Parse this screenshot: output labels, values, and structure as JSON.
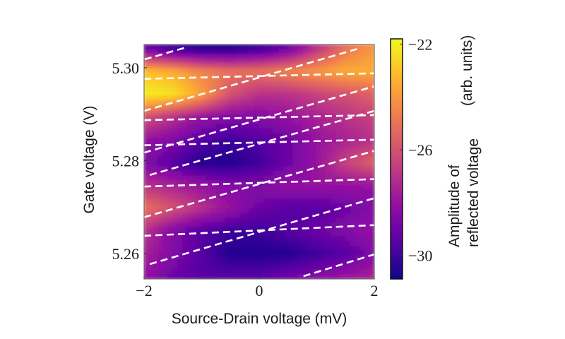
{
  "chart_data": {
    "type": "heatmap",
    "title": "",
    "xlabel": "Source-Drain voltage (mV)",
    "ylabel": "Gate voltage (V)",
    "xlim": [
      -2,
      2
    ],
    "ylim": [
      5.2545,
      5.305
    ],
    "xticks": [
      -2,
      0,
      2
    ],
    "xtick_labels": [
      "−2",
      "0",
      "2"
    ],
    "yticks": [
      5.26,
      5.28,
      5.3
    ],
    "ytick_labels": [
      "5.26",
      "5.28",
      "5.30"
    ],
    "grid": false,
    "colormap": "plasma",
    "colormap_stops": [
      "#0d0887",
      "#5302a3",
      "#8b0aa5",
      "#b83289",
      "#db5c68",
      "#f48849",
      "#febd2a",
      "#f0f921"
    ],
    "colorbar": {
      "label_line1": "Amplitude of",
      "label_line2": "reflected voltage",
      "label_units": "(arb. units)",
      "range": [
        -30.9,
        -21.8
      ],
      "ticks": [
        -22,
        -26,
        -30
      ],
      "tick_labels": [
        "−22",
        "−26",
        "−30"
      ]
    },
    "z_grid": {
      "x": [
        -2,
        -1.5,
        -1,
        -0.5,
        0,
        0.5,
        1,
        1.5,
        2
      ],
      "y": [
        5.304,
        5.299,
        5.294,
        5.289,
        5.284,
        5.279,
        5.274,
        5.269,
        5.264,
        5.259,
        5.255
      ],
      "z": [
        [
          -29,
          -30,
          -30.5,
          -30.5,
          -30,
          -29,
          -27,
          -25,
          -24
        ],
        [
          -23,
          -23.5,
          -24.5,
          -25,
          -25,
          -24.5,
          -24,
          -23.5,
          -23.5
        ],
        [
          -22,
          -22.3,
          -23.8,
          -26,
          -27,
          -27,
          -26.5,
          -26,
          -25.5
        ],
        [
          -26,
          -27,
          -28,
          -28.5,
          -28.5,
          -28,
          -27.5,
          -27,
          -26.5
        ],
        [
          -28,
          -28.5,
          -29.5,
          -30,
          -29.5,
          -29,
          -28,
          -27.5,
          -27
        ],
        [
          -28.5,
          -29.5,
          -30.5,
          -30.5,
          -30,
          -29,
          -28,
          -26.5,
          -25.5
        ],
        [
          -27,
          -27.5,
          -28,
          -28.5,
          -28.5,
          -28,
          -28,
          -28,
          -28
        ],
        [
          -25,
          -26,
          -27,
          -28,
          -29,
          -29.5,
          -29.5,
          -29,
          -28.5
        ],
        [
          -27,
          -28.5,
          -29.5,
          -30,
          -30,
          -29.5,
          -29,
          -28.5,
          -28
        ],
        [
          -27.5,
          -28.5,
          -29.5,
          -30.5,
          -30.5,
          -30.5,
          -30,
          -29.5,
          -28.5
        ],
        [
          -28,
          -29,
          -29.5,
          -29.5,
          -29.5,
          -29,
          -28.5,
          -28,
          -27.5
        ]
      ]
    },
    "dashed_lines": [
      {
        "x": [
          -1.99,
          -1.29
        ],
        "y": [
          5.3018,
          5.3043
        ]
      },
      {
        "x": [
          -2,
          2
        ],
        "y": [
          5.2976,
          5.2988
        ]
      },
      {
        "x": [
          -2,
          1.72
        ],
        "y": [
          5.2907,
          5.3041
        ]
      },
      {
        "x": [
          -2,
          2
        ],
        "y": [
          5.2887,
          5.2898
        ]
      },
      {
        "x": [
          -2,
          2
        ],
        "y": [
          5.2817,
          5.296
        ]
      },
      {
        "x": [
          -2,
          2
        ],
        "y": [
          5.2833,
          5.2845
        ]
      },
      {
        "x": [
          -1.9,
          2
        ],
        "y": [
          5.2769,
          5.2907
        ]
      },
      {
        "x": [
          -2,
          2
        ],
        "y": [
          5.2744,
          5.276
        ]
      },
      {
        "x": [
          -2,
          2
        ],
        "y": [
          5.2678,
          5.2821
        ]
      },
      {
        "x": [
          -2,
          2
        ],
        "y": [
          5.2638,
          5.2661
        ]
      },
      {
        "x": [
          -1.9,
          2
        ],
        "y": [
          5.2577,
          5.2719
        ]
      },
      {
        "x": [
          0.77,
          2
        ],
        "y": [
          5.2551,
          5.2598
        ]
      }
    ],
    "dashed_line_color": "#ffffff"
  }
}
